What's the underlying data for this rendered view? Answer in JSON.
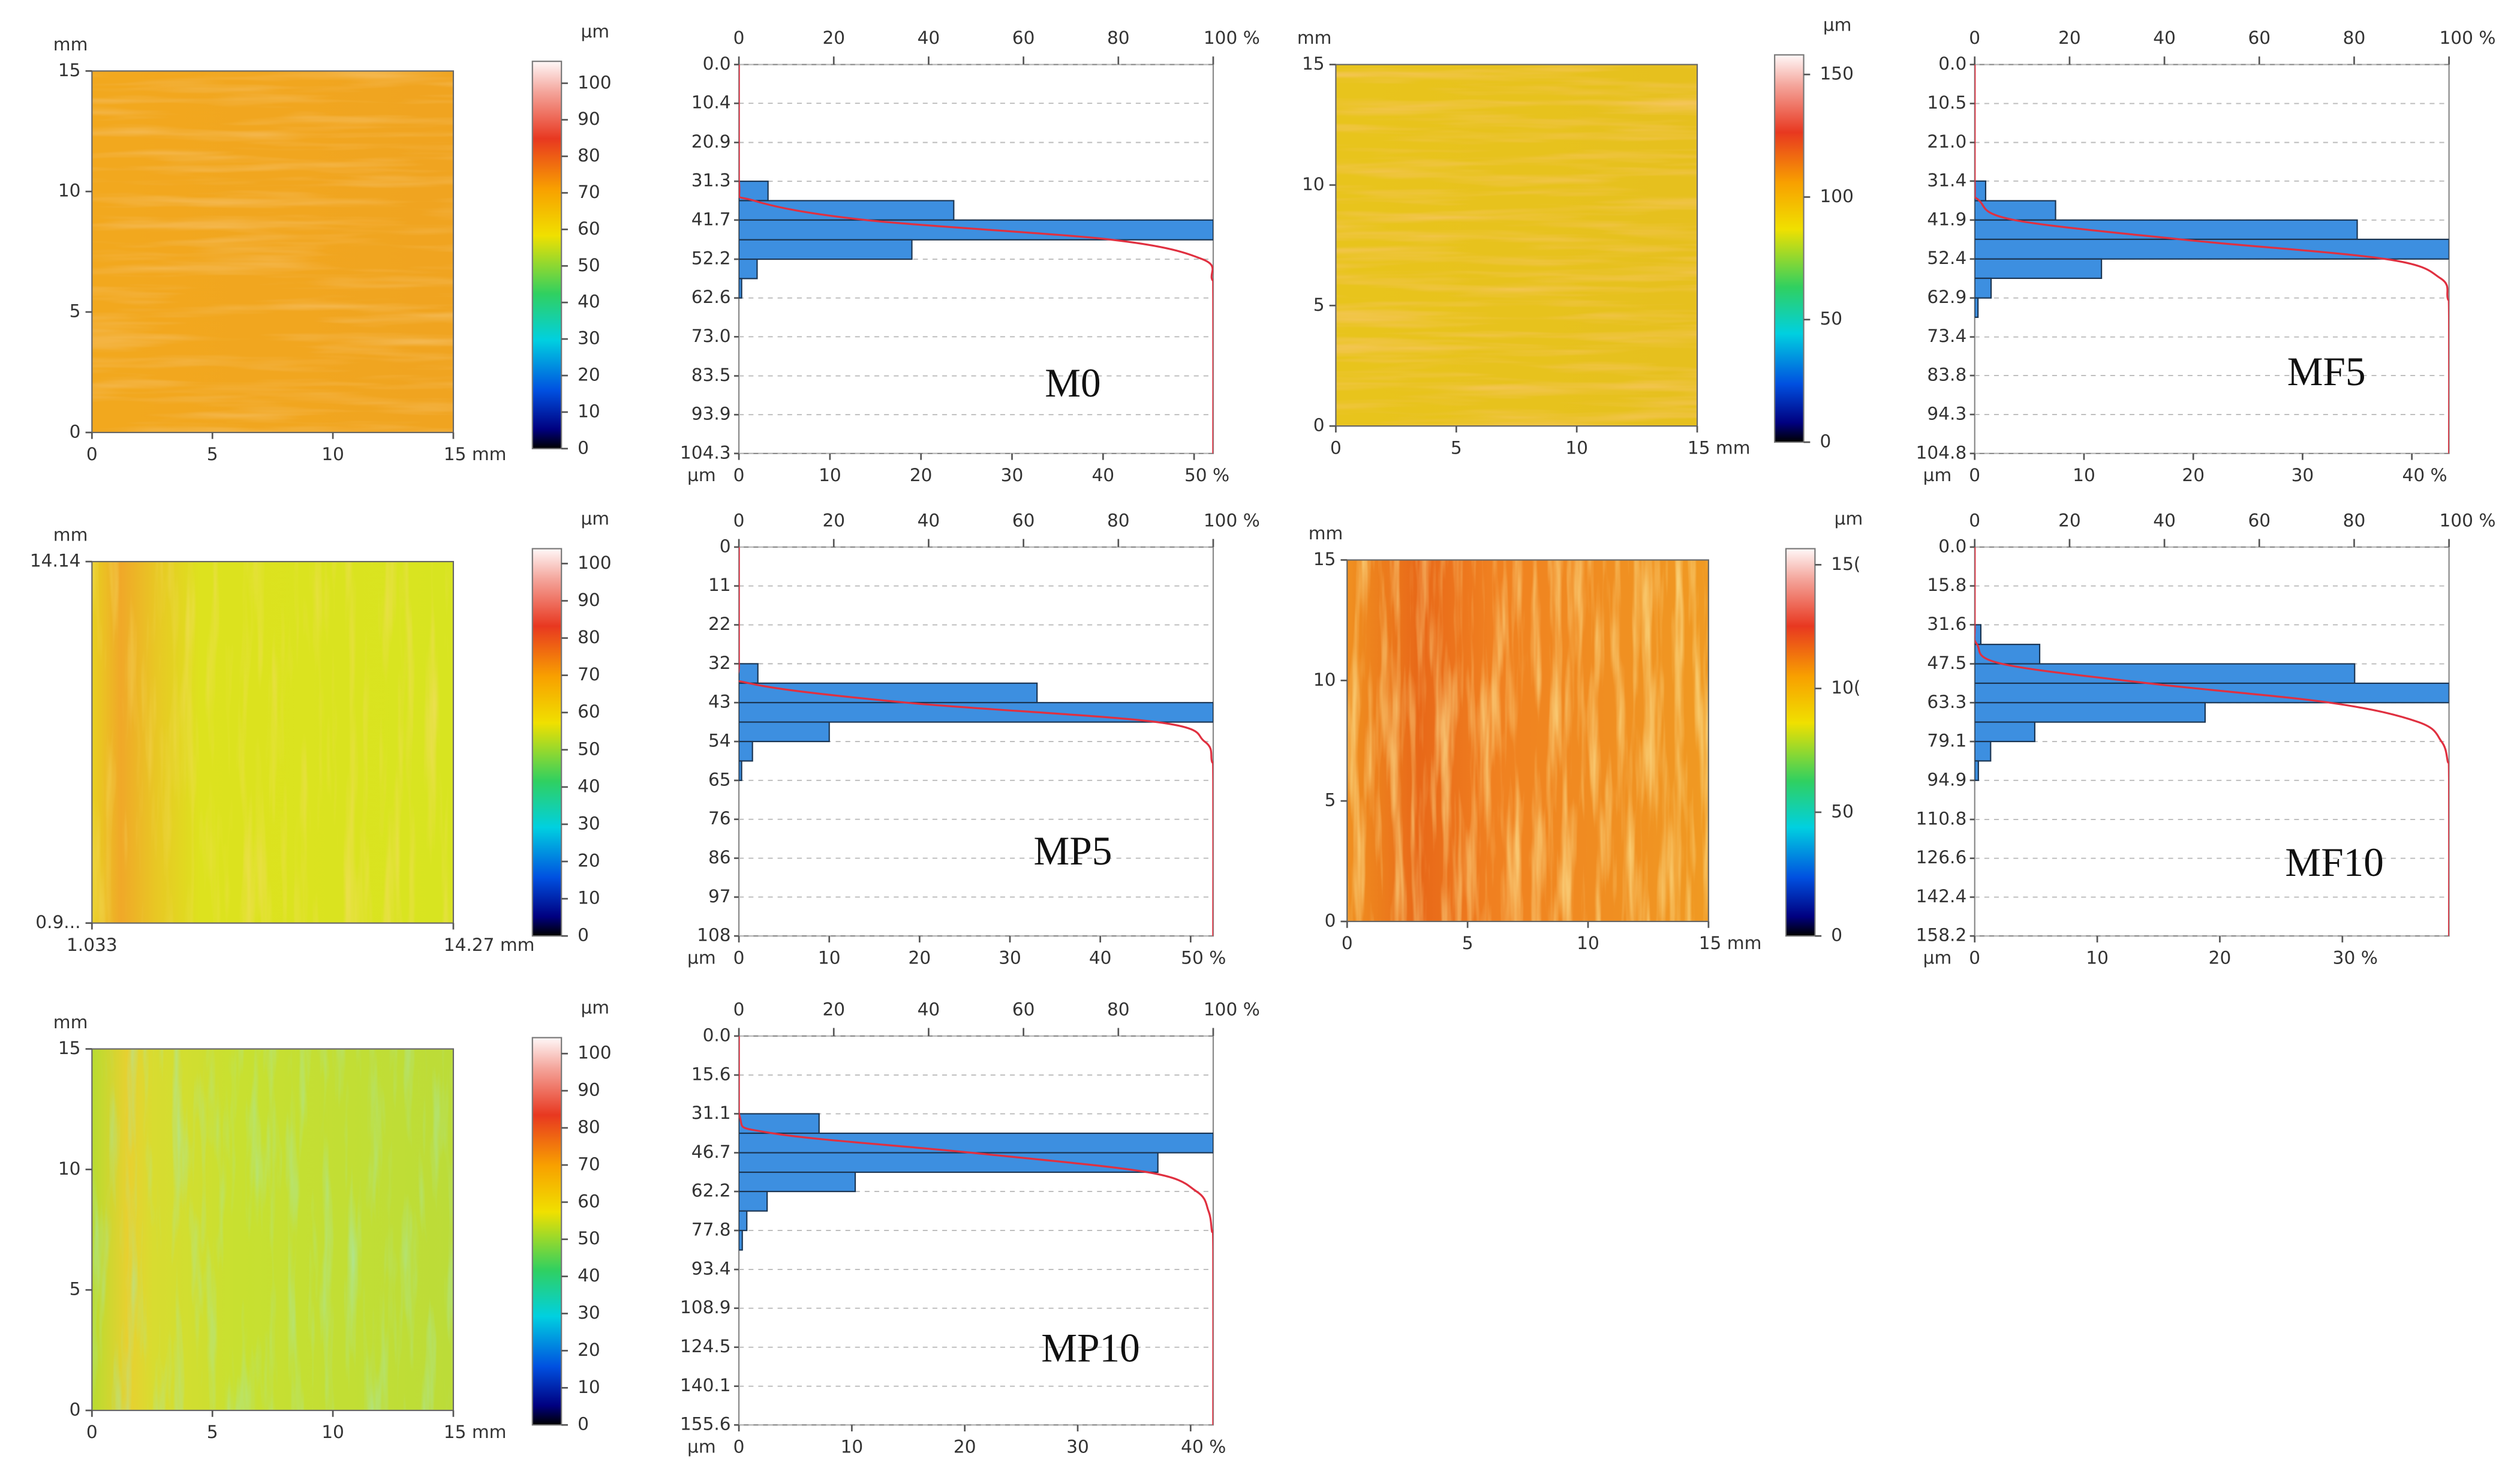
{
  "chart_data": [
    {
      "type": "histogram",
      "title": "M0",
      "color": "#3d8fe0",
      "curve_color": "#e03040",
      "map": {
        "ylabel": "mm",
        "xlim": [
          0,
          15
        ],
        "ylim": [
          0,
          15
        ],
        "xticks": [
          0,
          5,
          10,
          {
            "value": 15,
            "label": "15 mm"
          }
        ],
        "yticks": [
          0,
          5,
          10,
          15
        ]
      },
      "colorbar": {
        "label": "µm",
        "lim": [
          0,
          106
        ],
        "ticks": [
          0,
          10,
          20,
          30,
          40,
          50,
          60,
          70,
          80,
          90,
          100
        ]
      },
      "ylabel": "µm",
      "ylim": [
        0,
        104.3
      ],
      "yticks": [
        {
          "value": 0,
          "label": "0.0"
        },
        10.4,
        20.9,
        31.3,
        41.7,
        52.2,
        62.6,
        {
          "value": 73,
          "label": "73.0"
        },
        83.5,
        93.9,
        104.3
      ],
      "xlim": [
        0,
        52.1
      ],
      "xticks": [
        0,
        10,
        20,
        30,
        40,
        {
          "value": 50,
          "label": "50 %"
        }
      ],
      "x2lim": [
        0,
        100
      ],
      "x2ticks": [
        0,
        20,
        40,
        60,
        80,
        {
          "value": 100,
          "label": "100 %"
        }
      ],
      "bins": [
        31.3,
        36.5,
        41.7,
        47,
        52.2,
        57.4,
        62.6
      ],
      "values": [
        3.2,
        23.6,
        52.1,
        19,
        2,
        0.3
      ]
    },
    {
      "type": "histogram",
      "title": "MF5",
      "color": "#3d8fe0",
      "curve_color": "#e03040",
      "map": {
        "ylabel": "mm",
        "xlim": [
          0,
          15
        ],
        "ylim": [
          0,
          15
        ],
        "xticks": [
          0,
          5,
          10,
          {
            "value": 15,
            "label": "15 mm"
          }
        ],
        "yticks": [
          0,
          5,
          10,
          15
        ]
      },
      "colorbar": {
        "label": "µm",
        "lim": [
          0,
          158
        ],
        "ticks": [
          0,
          50,
          100,
          150
        ]
      },
      "ylabel": "µm",
      "ylim": [
        0,
        104.8
      ],
      "yticks": [
        {
          "value": 0,
          "label": "0.0"
        },
        10.5,
        {
          "value": 21,
          "label": "21.0"
        },
        31.4,
        41.9,
        52.4,
        62.9,
        73.4,
        83.8,
        94.3,
        104.8
      ],
      "xlim": [
        0,
        43.4
      ],
      "xticks": [
        0,
        10,
        20,
        30,
        {
          "value": 40,
          "label": "40 %"
        }
      ],
      "x2lim": [
        0,
        100
      ],
      "x2ticks": [
        0,
        20,
        40,
        60,
        80,
        {
          "value": 100,
          "label": "100 %"
        }
      ],
      "bins": [
        31.4,
        36.7,
        41.9,
        47.1,
        52.4,
        57.6,
        62.9,
        68.1
      ],
      "values": [
        1,
        7.4,
        35,
        43.4,
        11.6,
        1.5,
        0.3
      ]
    },
    {
      "type": "histogram",
      "title": "MP5",
      "color": "#3d8fe0",
      "curve_color": "#e03040",
      "map": {
        "ylabel": "mm",
        "xlim": [
          1.033,
          14.27
        ],
        "ylim": [
          0.9,
          14.14
        ],
        "xticks": [
          1.033,
          {
            "value": 14.27,
            "label": "14.27 mm"
          }
        ],
        "yticks": [
          {
            "value": 0.9,
            "label": "0.9..."
          },
          14.14
        ]
      },
      "colorbar": {
        "label": "µm",
        "lim": [
          0,
          104
        ],
        "ticks": [
          0,
          10,
          20,
          30,
          40,
          50,
          60,
          70,
          80,
          90,
          100
        ]
      },
      "ylabel": "µm",
      "ylim": [
        0,
        108
      ],
      "yticks": [
        0,
        {
          "value": 10.8,
          "label": "11"
        },
        {
          "value": 21.6,
          "label": "22"
        },
        {
          "value": 32.4,
          "label": "32"
        },
        {
          "value": 43.2,
          "label": "43"
        },
        54,
        {
          "value": 64.8,
          "label": "65"
        },
        {
          "value": 75.6,
          "label": "76"
        },
        {
          "value": 86.4,
          "label": "86"
        },
        {
          "value": 97.2,
          "label": "97"
        },
        108
      ],
      "xlim": [
        0,
        52.5
      ],
      "xticks": [
        0,
        10,
        20,
        30,
        40,
        {
          "value": 50,
          "label": "50 %"
        }
      ],
      "x2lim": [
        0,
        100
      ],
      "x2ticks": [
        0,
        20,
        40,
        60,
        80,
        {
          "value": 100,
          "label": "100 %"
        }
      ],
      "bins": [
        32.4,
        37.8,
        43.2,
        48.6,
        54,
        59.4,
        64.8
      ],
      "values": [
        2.1,
        33,
        52.5,
        10,
        1.5,
        0.3
      ]
    },
    {
      "type": "histogram",
      "title": "MF10",
      "color": "#3d8fe0",
      "curve_color": "#e03040",
      "map": {
        "ylabel": "mm",
        "xlim": [
          0,
          15
        ],
        "ylim": [
          0,
          15
        ],
        "xticks": [
          0,
          5,
          10,
          {
            "value": 15,
            "label": "15 mm"
          }
        ],
        "yticks": [
          0,
          5,
          10,
          15
        ]
      },
      "colorbar": {
        "label": "µm",
        "lim": [
          0,
          156.5
        ],
        "ticks": [
          0,
          50,
          {
            "value": 100,
            "label": "10("
          },
          {
            "value": 150,
            "label": "15("
          }
        ]
      },
      "ylabel": "µm",
      "ylim": [
        0,
        158.2
      ],
      "yticks": [
        {
          "value": 0,
          "label": "0.0"
        },
        15.8,
        31.6,
        47.5,
        63.3,
        79.1,
        94.9,
        110.8,
        126.6,
        142.4,
        158.2
      ],
      "xlim": [
        0,
        38.7
      ],
      "xticks": [
        0,
        10,
        20,
        {
          "value": 30,
          "label": "30 %"
        }
      ],
      "x2lim": [
        0,
        100
      ],
      "x2ticks": [
        0,
        20,
        40,
        60,
        80,
        {
          "value": 100,
          "label": "100 %"
        }
      ],
      "bins": [
        31.6,
        39.6,
        47.5,
        55.4,
        63.3,
        71.2,
        79.1,
        87,
        94.9
      ],
      "values": [
        0.5,
        5.3,
        31,
        38.7,
        18.8,
        4.9,
        1.3,
        0.3
      ]
    },
    {
      "type": "histogram",
      "title": "MP10",
      "color": "#3d8fe0",
      "curve_color": "#e03040",
      "map": {
        "ylabel": "mm",
        "xlim": [
          0,
          15
        ],
        "ylim": [
          0,
          15
        ],
        "xticks": [
          0,
          5,
          10,
          {
            "value": 15,
            "label": "15 mm"
          }
        ],
        "yticks": [
          0,
          5,
          10,
          15
        ]
      },
      "colorbar": {
        "label": "µm",
        "lim": [
          0,
          104.3
        ],
        "ticks": [
          0,
          10,
          20,
          30,
          40,
          50,
          60,
          70,
          80,
          90,
          100
        ]
      },
      "ylabel": "µm",
      "ylim": [
        0,
        155.6
      ],
      "yticks": [
        {
          "value": 0,
          "label": "0.0"
        },
        15.6,
        31.1,
        46.7,
        62.2,
        77.8,
        93.4,
        108.9,
        124.5,
        140.1,
        155.6
      ],
      "xlim": [
        0,
        42
      ],
      "xticks": [
        0,
        10,
        20,
        30,
        {
          "value": 40,
          "label": "40 %"
        }
      ],
      "x2lim": [
        0,
        100
      ],
      "x2ticks": [
        0,
        20,
        40,
        60,
        80,
        {
          "value": 100,
          "label": "100 %"
        }
      ],
      "bins": [
        31.1,
        38.9,
        46.7,
        54.5,
        62.2,
        70,
        77.8,
        85.6
      ],
      "values": [
        7.1,
        42,
        37.1,
        10.3,
        2.5,
        0.7,
        0.3
      ]
    }
  ]
}
